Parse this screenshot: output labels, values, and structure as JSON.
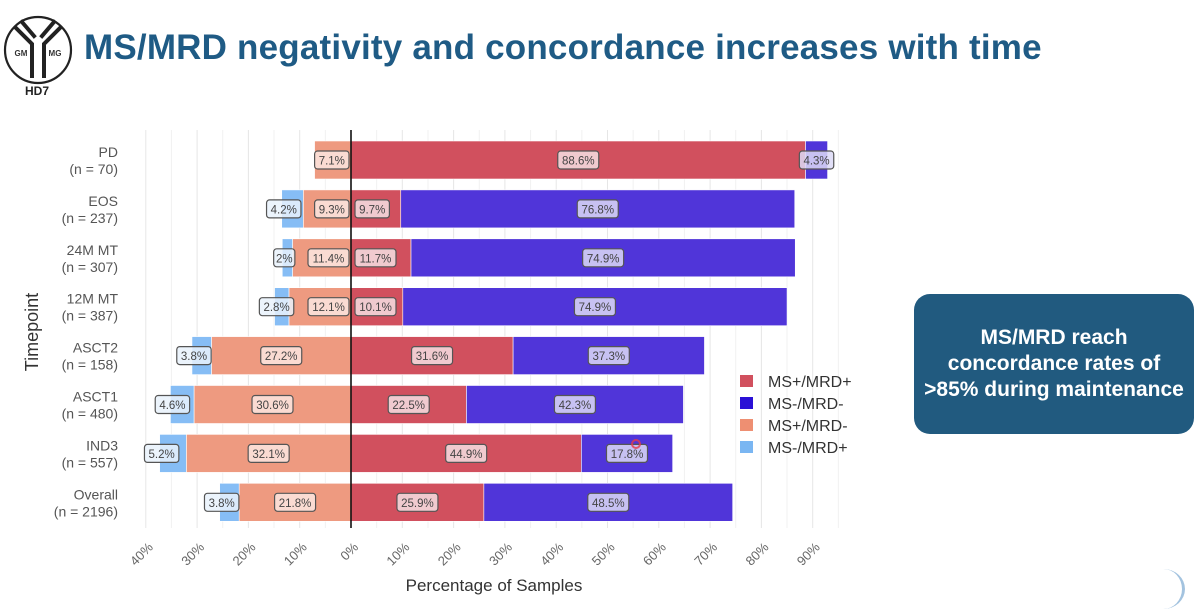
{
  "slide": {
    "title": "MS/MRD negativity and concordance increases with time",
    "logo": {
      "inner_left": "GM",
      "inner_right": "MG",
      "caption": "HD7"
    },
    "callout": "MS/MRD reach concordance rates of >85% during maintenance"
  },
  "chart_data": {
    "type": "bar",
    "orientation": "horizontal",
    "stacking": "diverging",
    "title": "",
    "xlabel": "Percentage of Samples",
    "ylabel": "Timepoint",
    "xlim": [
      -40,
      95
    ],
    "x_ticks": [
      -40,
      -30,
      -20,
      -10,
      0,
      10,
      20,
      30,
      40,
      50,
      60,
      70,
      80,
      90
    ],
    "x_tick_labels": [
      "40%",
      "30%",
      "20%",
      "10%",
      "0%",
      "10%",
      "20%",
      "30%",
      "40%",
      "50%",
      "60%",
      "70%",
      "80%",
      "90%"
    ],
    "grid": true,
    "legend_position": "right",
    "categories": [
      {
        "name": "PD",
        "n": "(n = 70)"
      },
      {
        "name": "EOS",
        "n": "(n = 237)"
      },
      {
        "name": "24M MT",
        "n": "(n = 307)"
      },
      {
        "name": "12M MT",
        "n": "(n = 387)"
      },
      {
        "name": "ASCT2",
        "n": "(n = 158)"
      },
      {
        "name": "ASCT1",
        "n": "(n = 480)"
      },
      {
        "name": "IND3",
        "n": "(n = 557)"
      },
      {
        "name": "Overall",
        "n": "(n = 2196)"
      }
    ],
    "series": [
      {
        "name": "MS+/MRD+",
        "side": "right",
        "color": "#d1505e",
        "values": [
          88.6,
          9.7,
          11.7,
          10.1,
          31.6,
          22.5,
          44.9,
          25.9
        ],
        "labels": [
          "88.6%",
          "9.7%",
          "11.7%",
          "10.1%",
          "31.6%",
          "22.5%",
          "44.9%",
          "25.9%"
        ]
      },
      {
        "name": "MS-/MRD-",
        "side": "right",
        "color": "#5035d9",
        "values": [
          4.3,
          76.8,
          74.9,
          74.9,
          37.3,
          42.3,
          17.8,
          48.5
        ],
        "labels": [
          "4.3%",
          "76.8%",
          "74.9%",
          "74.9%",
          "37.3%",
          "42.3%",
          "17.8%",
          "48.5%"
        ]
      },
      {
        "name": "MS+/MRD-",
        "side": "left",
        "color": "#ee9a80",
        "values": [
          7.1,
          9.3,
          11.4,
          12.1,
          27.2,
          30.6,
          32.1,
          21.8
        ],
        "labels": [
          "7.1%",
          "9.3%",
          "11.4%",
          "12.1%",
          "27.2%",
          "30.6%",
          "32.1%",
          "21.8%"
        ]
      },
      {
        "name": "MS-/MRD+",
        "side": "left",
        "color": "#86bdf5",
        "values": [
          0,
          4.2,
          2.0,
          2.8,
          3.8,
          4.6,
          5.2,
          3.8
        ],
        "labels": [
          "",
          "4.2%",
          "2%",
          "2.8%",
          "3.8%",
          "4.6%",
          "5.2%",
          "3.8%"
        ]
      }
    ],
    "legend": [
      {
        "label": "MS+/MRD+",
        "color": "#d1505e"
      },
      {
        "label": "MS-/MRD-",
        "color": "#2a10d6"
      },
      {
        "label": "MS+/MRD-",
        "color": "#ee8f72"
      },
      {
        "label": "MS-/MRD+",
        "color": "#7ab6f2"
      }
    ]
  }
}
